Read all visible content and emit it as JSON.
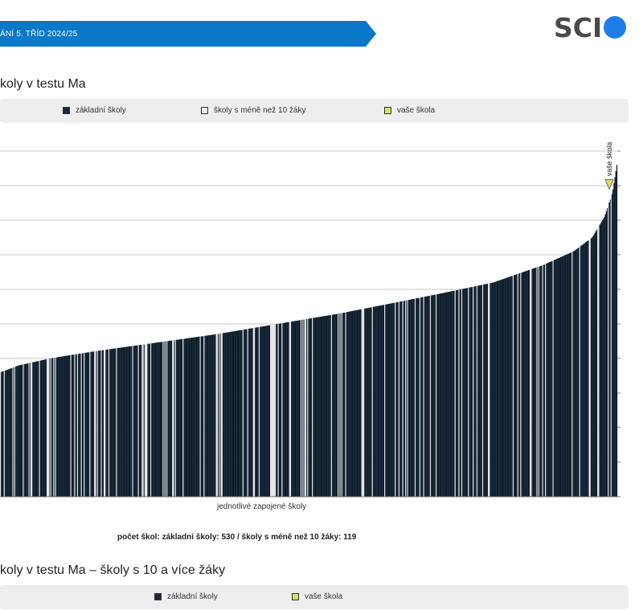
{
  "header": {
    "banner_text": "ÁNÍ 5. TŘÍD 2024/25",
    "logo_text": "SCI",
    "brand_color": "#0a78c8",
    "logo_dot_color": "#1e7ee8"
  },
  "section1": {
    "title": "koly v testu Ma",
    "legend": [
      {
        "label": "základní školy",
        "color": "#1a2a3c"
      },
      {
        "label": "školy s méně než 10 žáky",
        "color": "#f0f0f0"
      },
      {
        "label": "vaše škola",
        "color": "#d8e060"
      }
    ],
    "xlabel": "jednotlivé zapojené školy",
    "footnote": "počet škol: základní školy: 530 / školy s méně než 10 žáky: 119"
  },
  "section2": {
    "title": "koly v testu Ma – školy s 10 a více žáky",
    "legend": [
      {
        "label": "základní školy",
        "color": "#1a2a3c"
      },
      {
        "label": "vaše škola",
        "color": "#d8e060"
      }
    ]
  },
  "chart_data": {
    "type": "bar",
    "title": "",
    "xlabel": "jednotlivé zapojené školy",
    "ylabel": "",
    "ylim": [
      0,
      100
    ],
    "gridlines": true,
    "bar_count": 649,
    "series": [
      {
        "name": "základní školy",
        "count": 530,
        "color": "#1a2a3c"
      },
      {
        "name": "školy s méně než 10 žáky",
        "count": 119,
        "color": "#f0f0f0"
      }
    ],
    "curve_points": [
      {
        "x": 0,
        "y": 36
      },
      {
        "x": 3,
        "y": 38
      },
      {
        "x": 8,
        "y": 40
      },
      {
        "x": 15,
        "y": 42
      },
      {
        "x": 25,
        "y": 44.5
      },
      {
        "x": 35,
        "y": 47
      },
      {
        "x": 45,
        "y": 50
      },
      {
        "x": 55,
        "y": 53
      },
      {
        "x": 65,
        "y": 56.5
      },
      {
        "x": 72,
        "y": 59
      },
      {
        "x": 80,
        "y": 62
      },
      {
        "x": 88,
        "y": 67
      },
      {
        "x": 93,
        "y": 71
      },
      {
        "x": 96,
        "y": 75
      },
      {
        "x": 98,
        "y": 81
      },
      {
        "x": 99.3,
        "y": 88
      },
      {
        "x": 100,
        "y": 96
      }
    ],
    "your_school": {
      "label": "vaše škola",
      "percentile": 98.7,
      "value": 89,
      "color": "#d8e060"
    }
  }
}
